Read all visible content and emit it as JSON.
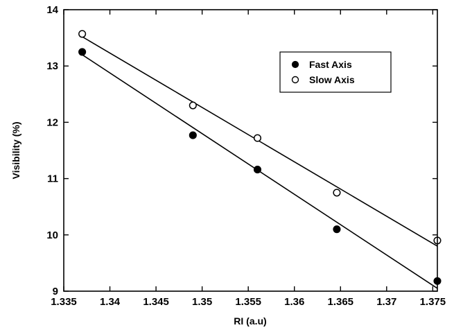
{
  "chart_data": {
    "type": "scatter",
    "xlabel": "RI (a.u)",
    "ylabel": "Visibility (%)",
    "xlim": [
      1.335,
      1.3755
    ],
    "ylim": [
      9,
      14
    ],
    "xticks": [
      1.335,
      1.34,
      1.345,
      1.35,
      1.355,
      1.36,
      1.365,
      1.37,
      1.375
    ],
    "xtick_labels": [
      "1.335",
      "1.34",
      "1.345",
      "1.35",
      "1.355",
      "1.36",
      "1.365",
      "1.37",
      "1.375"
    ],
    "yticks": [
      9,
      10,
      11,
      12,
      13,
      14
    ],
    "ytick_labels": [
      "9",
      "10",
      "11",
      "12",
      "13",
      "14"
    ],
    "grid": false,
    "legend_position": "top-right",
    "series": [
      {
        "name": "Fast Axis",
        "marker": "filled-circle",
        "x": [
          1.337,
          1.349,
          1.356,
          1.3646,
          1.3755
        ],
        "y": [
          13.25,
          11.77,
          11.16,
          10.1,
          9.18
        ],
        "fit_line": {
          "x": [
            1.337,
            1.3755
          ],
          "y": [
            13.2,
            9.05
          ]
        }
      },
      {
        "name": "Slow Axis",
        "marker": "open-circle",
        "x": [
          1.337,
          1.349,
          1.356,
          1.3646,
          1.3755
        ],
        "y": [
          13.57,
          12.3,
          11.72,
          10.75,
          9.9
        ],
        "fit_line": {
          "x": [
            1.337,
            1.3755
          ],
          "y": [
            13.52,
            9.8
          ]
        }
      }
    ]
  }
}
